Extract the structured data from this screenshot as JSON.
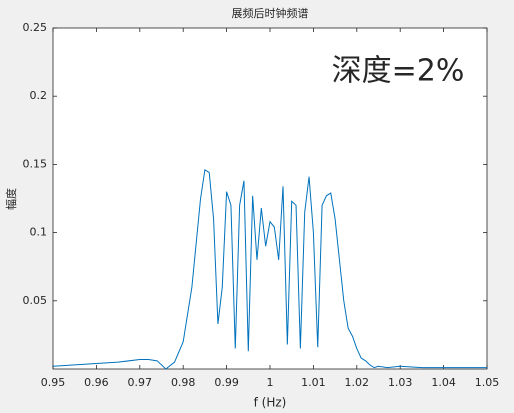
{
  "chart_data": {
    "type": "line",
    "title": "展频后时钟频谱",
    "xlabel": "f (Hz)",
    "ylabel": "幅度",
    "annotation": "深度=2%",
    "annotation_color": "#ff2a2a",
    "x": [
      0.95,
      0.955,
      0.96,
      0.965,
      0.97,
      0.972,
      0.974,
      0.976,
      0.978,
      0.98,
      0.982,
      0.984,
      0.985,
      0.986,
      0.987,
      0.988,
      0.989,
      0.99,
      0.991,
      0.992,
      0.993,
      0.994,
      0.995,
      0.996,
      0.997,
      0.998,
      0.999,
      1.0,
      1.001,
      1.002,
      1.003,
      1.004,
      1.005,
      1.006,
      1.007,
      1.008,
      1.009,
      1.01,
      1.011,
      1.012,
      1.013,
      1.014,
      1.015,
      1.016,
      1.017,
      1.018,
      1.019,
      1.02,
      1.021,
      1.022,
      1.023,
      1.024,
      1.025,
      1.027,
      1.03,
      1.035,
      1.04,
      1.045,
      1.05
    ],
    "series": [
      {
        "name": "spectrum",
        "color": "#0072bd",
        "values": [
          0.002,
          0.003,
          0.004,
          0.005,
          0.007,
          0.007,
          0.006,
          0.0,
          0.005,
          0.02,
          0.06,
          0.125,
          0.146,
          0.144,
          0.11,
          0.033,
          0.06,
          0.13,
          0.12,
          0.015,
          0.12,
          0.138,
          0.013,
          0.127,
          0.08,
          0.118,
          0.09,
          0.108,
          0.104,
          0.08,
          0.134,
          0.018,
          0.123,
          0.12,
          0.015,
          0.115,
          0.141,
          0.1,
          0.016,
          0.12,
          0.127,
          0.129,
          0.11,
          0.08,
          0.05,
          0.03,
          0.024,
          0.015,
          0.008,
          0.006,
          0.003,
          0.001,
          0.002,
          0.001,
          0.002,
          0.001,
          0.001,
          0.001,
          0.001
        ]
      }
    ],
    "xlim": [
      0.95,
      1.05
    ],
    "xticks": [
      0.95,
      0.96,
      0.97,
      0.98,
      0.99,
      1,
      1.01,
      1.02,
      1.03,
      1.04,
      1.05
    ],
    "ylim": [
      0,
      0.25
    ],
    "yticks": [
      0.05,
      0.1,
      0.15,
      0.2,
      0.25
    ]
  }
}
